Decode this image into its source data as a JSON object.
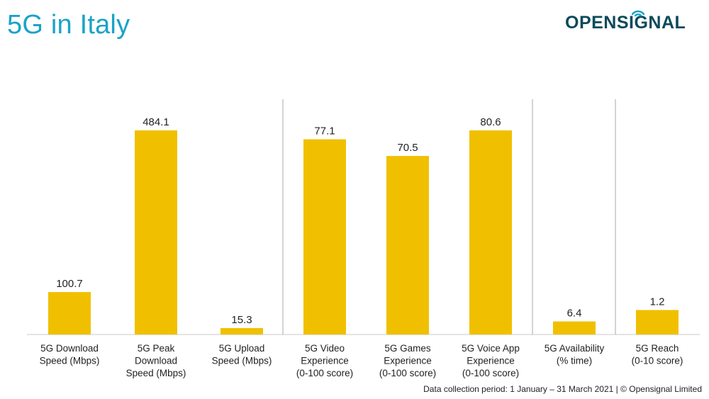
{
  "header": {
    "title": "5G in Italy",
    "logo_text": "OPENSIGNAL"
  },
  "footer": {
    "text": "Data collection period: 1 January – 31 March 2021  |  © Opensignal Limited"
  },
  "colors": {
    "bar": "#f0c000",
    "title": "#1aa3c8",
    "logo": "#0d4a5c",
    "divider": "#a8a8a8"
  },
  "chart_data": [
    {
      "type": "bar",
      "group": "speed",
      "categories": [
        [
          "5G Download",
          "Speed (Mbps)"
        ],
        [
          "5G Peak",
          "Download",
          "Speed (Mbps)"
        ],
        [
          "5G Upload",
          "Speed (Mbps)"
        ]
      ],
      "values": [
        100.7,
        484.1,
        15.3
      ],
      "value_labels": [
        "100.7",
        "484.1",
        "15.3"
      ],
      "ylim": [
        0,
        484.1
      ]
    },
    {
      "type": "bar",
      "group": "experience",
      "categories": [
        [
          "5G Video",
          "Experience",
          "(0-100 score)"
        ],
        [
          "5G Games",
          "Experience",
          "(0-100 score)"
        ],
        [
          "5G Voice App",
          "Experience",
          "(0-100 score)"
        ]
      ],
      "values": [
        77.1,
        70.5,
        80.6
      ],
      "value_labels": [
        "77.1",
        "70.5",
        "80.6"
      ],
      "ylim": [
        0,
        80.6
      ]
    },
    {
      "type": "bar",
      "group": "availability",
      "categories": [
        [
          "5G Availability",
          "(% time)"
        ]
      ],
      "values": [
        6.4
      ],
      "value_labels": [
        "6.4"
      ],
      "ylim": [
        0,
        100
      ]
    },
    {
      "type": "bar",
      "group": "reach",
      "categories": [
        [
          "5G Reach",
          "(0-10 score)"
        ]
      ],
      "values": [
        1.2
      ],
      "value_labels": [
        "1.2"
      ],
      "ylim": [
        0,
        10
      ]
    }
  ]
}
